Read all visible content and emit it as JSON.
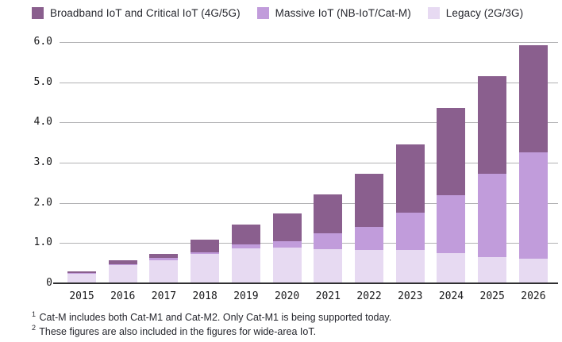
{
  "legend": {
    "items": [
      {
        "label": "Broadband IoT and Critical IoT (4G/5G)",
        "color": "#8a5f8e",
        "slug": "broadband-critical-iot"
      },
      {
        "label": "Massive IoT (NB-IoT/Cat-M)",
        "color": "#c19cdb",
        "slug": "massive-iot"
      },
      {
        "label": "Legacy (2G/3G)",
        "color": "#e7daf2",
        "slug": "legacy"
      }
    ]
  },
  "chart_data": {
    "type": "bar",
    "stacked": true,
    "title": "",
    "xlabel": "",
    "ylabel": "",
    "categories": [
      "2015",
      "2016",
      "2017",
      "2018",
      "2019",
      "2020",
      "2021",
      "2022",
      "2023",
      "2024",
      "2025",
      "2026"
    ],
    "series": [
      {
        "name": "Legacy (2G/3G)",
        "slug": "legacy",
        "color": "#e7daf2",
        "values": [
          0.24,
          0.46,
          0.58,
          0.73,
          0.87,
          0.88,
          0.84,
          0.83,
          0.83,
          0.75,
          0.66,
          0.62
        ]
      },
      {
        "name": "Massive IoT (NB-IoT/Cat-M)",
        "slug": "massive-iot",
        "color": "#c19cdb",
        "values": [
          0.01,
          0.02,
          0.06,
          0.05,
          0.1,
          0.17,
          0.4,
          0.57,
          0.93,
          1.45,
          2.06,
          2.64
        ]
      },
      {
        "name": "Broadband IoT and Critical IoT (4G/5G)",
        "slug": "broadband-critical-iot",
        "color": "#8a5f8e",
        "values": [
          0.05,
          0.09,
          0.09,
          0.31,
          0.49,
          0.68,
          0.97,
          1.32,
          1.69,
          2.17,
          2.43,
          2.66
        ]
      }
    ],
    "ylim": [
      0,
      6
    ],
    "y_ticks": [
      "6.0",
      "5.0",
      "4.0",
      "3.0",
      "2.0",
      "1.0",
      "0"
    ],
    "grid": true,
    "legend_position": "top"
  },
  "footnotes": [
    {
      "marker": "1",
      "text": "Cat-M includes both Cat-M1 and Cat-M2. Only Cat-M1 is being supported today."
    },
    {
      "marker": "2",
      "text": "These figures are also included in the figures for wide-area IoT."
    }
  ],
  "style_colors": {
    "gridline": "#b1b1b3",
    "axis_line": "#2f2f31",
    "text": "#26272e"
  }
}
